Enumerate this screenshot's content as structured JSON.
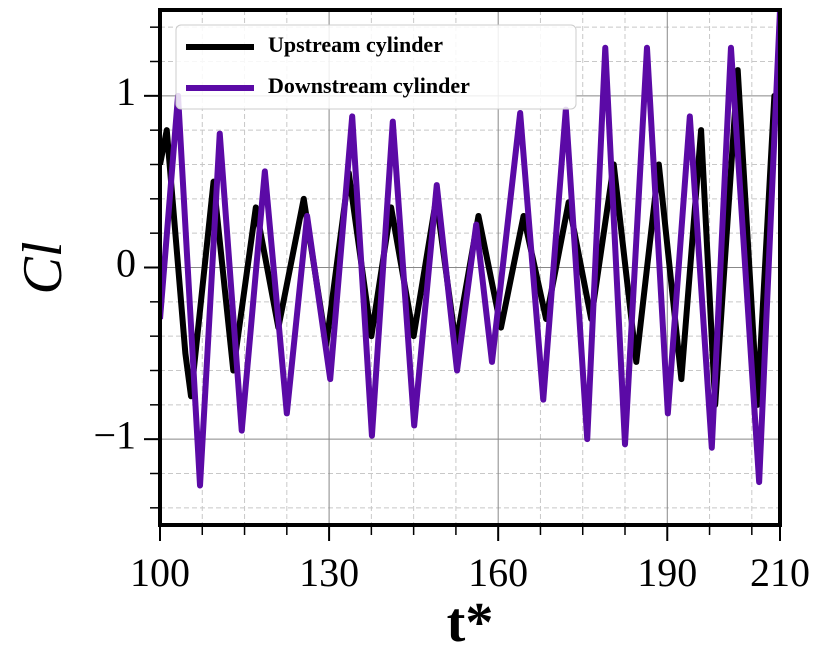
{
  "chart_data": {
    "type": "line",
    "x_label": "t*",
    "y_label": "Cl",
    "xlim": [
      100,
      210
    ],
    "ylim": [
      -1.5,
      1.5
    ],
    "xticks": [
      100,
      130,
      160,
      190,
      210
    ],
    "yticks": [
      {
        "value": -1,
        "label": "−1"
      },
      0,
      1
    ],
    "x_minor_ticks": [
      107.5,
      115,
      122.5,
      137.5,
      145,
      152.5,
      167.5,
      175,
      182.5,
      197.5,
      205
    ],
    "y_minor_ticks": [
      -1.4,
      -1.2,
      -0.8,
      -0.6,
      -0.4,
      -0.2,
      0.2,
      0.4,
      0.6,
      0.8,
      1.2,
      1.4
    ],
    "grid": true,
    "legend": "upper left",
    "series": [
      {
        "name": "Upstream cylinder",
        "color": "#000000",
        "x": [
          100,
          101.2,
          104.5,
          105.5,
          109.5,
          113,
          117,
          121,
          125.5,
          129.5,
          133.5,
          137.5,
          141,
          145,
          149,
          152.5,
          156.5,
          160.5,
          164.5,
          168.5,
          172.5,
          176.5,
          180.5,
          184.5,
          188.5,
          192.5,
          196,
          198.5,
          202.5,
          206,
          209,
          210
        ],
        "values": [
          0.6,
          0.8,
          -0.5,
          -0.75,
          0.5,
          -0.6,
          0.35,
          -0.35,
          0.4,
          -0.45,
          0.55,
          -0.4,
          0.35,
          -0.4,
          0.4,
          -0.45,
          0.3,
          -0.35,
          0.3,
          -0.3,
          0.38,
          -0.3,
          0.6,
          -0.55,
          0.6,
          -0.65,
          0.8,
          -0.8,
          1.15,
          -0.8,
          1.0,
          0.95
        ]
      },
      {
        "name": "Downstream cylinder",
        "color": "#5b0aa6",
        "x": [
          100,
          103.2,
          107.1,
          110.6,
          114.5,
          118.6,
          122.5,
          126.1,
          130.2,
          134.1,
          137.6,
          141.3,
          145.1,
          149.1,
          152.7,
          156.1,
          158.9,
          163.9,
          168,
          172,
          175.8,
          179,
          182.5,
          186.4,
          190.1,
          194,
          197.9,
          201.3,
          206.3,
          210
        ],
        "values": [
          -0.3,
          1.0,
          -1.27,
          0.78,
          -0.95,
          0.56,
          -0.85,
          0.3,
          -0.65,
          0.88,
          -0.98,
          0.85,
          -0.92,
          0.48,
          -0.6,
          0.25,
          -0.55,
          0.9,
          -0.77,
          0.92,
          -1.0,
          1.28,
          -1.03,
          1.28,
          -0.85,
          0.88,
          -1.05,
          1.28,
          -1.25,
          1.5
        ]
      }
    ]
  }
}
